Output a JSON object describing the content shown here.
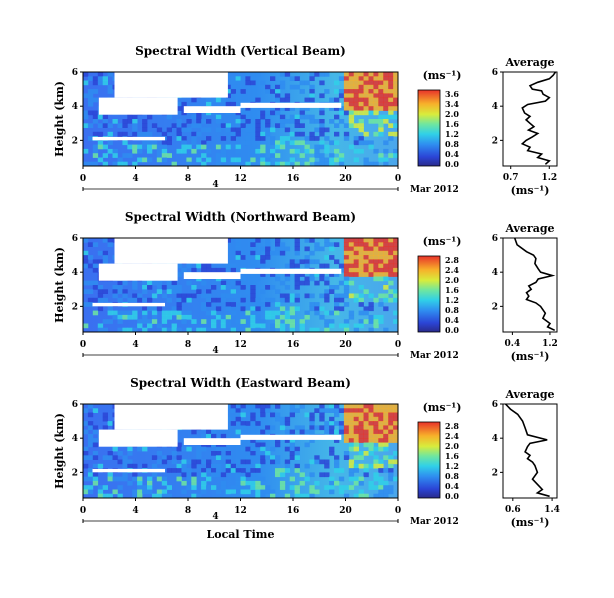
{
  "figure": {
    "date_label": "Mar 2012",
    "time_axis_label": "Local Time",
    "day_label": "4",
    "height_label": "Height (km)",
    "units_label": "(ms⁻¹)",
    "average_title": "Average",
    "average_units": "(ms⁻¹)"
  },
  "chart_data": [
    {
      "type": "heatmap",
      "title": "Spectral Width (Vertical Beam)",
      "xlabel": "",
      "ylabel": "Height (km)",
      "x_ticks": [
        "0",
        "4",
        "8",
        "12",
        "16",
        "20",
        "0"
      ],
      "y_ticks": [
        "6",
        "4",
        "2"
      ],
      "xlim": [
        0,
        24
      ],
      "ylim": [
        0.5,
        6
      ],
      "colorbar": {
        "label": "(ms⁻¹)",
        "ticks": [
          "3.6",
          "3.4",
          "2.0",
          "1.6",
          "1.2",
          "0.8",
          "0.4",
          "0.0"
        ],
        "range": [
          0,
          3.6
        ]
      },
      "description_values": {
        "high_width_region_time": [
          20,
          24
        ],
        "high_width_region_height": [
          4,
          6
        ]
      },
      "average_profile": {
        "title": "Average",
        "xlabel": "(ms⁻¹)",
        "x_ticks": [
          "0.7",
          "1.2"
        ],
        "xlim": [
          0.6,
          1.3
        ],
        "y_ticks": [
          "6",
          "4",
          "2"
        ],
        "ylim": [
          0.5,
          6
        ],
        "x": [
          1.28,
          1.25,
          1.2,
          1.05,
          0.95,
          0.98,
          1.1,
          1.12,
          1.2,
          1.15,
          0.92,
          0.85,
          0.88,
          0.95,
          0.9,
          0.95,
          1.0,
          0.93,
          1.05,
          0.98,
          0.9,
          0.85,
          0.95,
          0.92,
          1.1,
          1.05,
          1.2,
          1.15
        ],
        "y": [
          6.0,
          5.8,
          5.6,
          5.4,
          5.2,
          5.0,
          4.9,
          4.7,
          4.5,
          4.3,
          4.1,
          3.9,
          3.6,
          3.4,
          3.2,
          3.0,
          2.8,
          2.6,
          2.4,
          2.2,
          2.0,
          1.8,
          1.6,
          1.4,
          1.2,
          1.0,
          0.8,
          0.6
        ]
      }
    },
    {
      "type": "heatmap",
      "title": "Spectral Width (Northward Beam)",
      "xlabel": "",
      "ylabel": "Height (km)",
      "x_ticks": [
        "0",
        "4",
        "8",
        "12",
        "16",
        "20",
        "0"
      ],
      "y_ticks": [
        "6",
        "4",
        "2"
      ],
      "xlim": [
        0,
        24
      ],
      "ylim": [
        0.5,
        6
      ],
      "colorbar": {
        "label": "(ms⁻¹)",
        "ticks": [
          "2.8",
          "2.4",
          "2.0",
          "1.6",
          "1.2",
          "0.8",
          "0.4",
          "0.0"
        ],
        "range": [
          0,
          2.8
        ]
      },
      "average_profile": {
        "title": "Average",
        "xlabel": "(ms⁻¹)",
        "x_ticks": [
          "0.4",
          "1.2"
        ],
        "xlim": [
          0.2,
          1.35
        ],
        "y_ticks": [
          "6",
          "4",
          "2"
        ],
        "ylim": [
          0.5,
          6
        ],
        "x": [
          0.45,
          0.5,
          0.7,
          0.85,
          0.9,
          0.88,
          0.95,
          1.0,
          1.25,
          0.95,
          0.9,
          0.75,
          0.8,
          0.7,
          0.75,
          0.7,
          0.9,
          1.0,
          1.1,
          1.05,
          1.2,
          1.15,
          1.3
        ],
        "y": [
          6.0,
          5.6,
          5.2,
          5.0,
          4.8,
          4.5,
          4.2,
          4.0,
          3.8,
          3.6,
          3.4,
          3.2,
          3.0,
          2.8,
          2.6,
          2.4,
          2.2,
          2.0,
          1.6,
          1.3,
          1.0,
          0.8,
          0.6
        ]
      }
    },
    {
      "type": "heatmap",
      "title": "Spectral Width (Eastward Beam)",
      "xlabel": "Local Time",
      "ylabel": "Height (km)",
      "x_ticks": [
        "0",
        "4",
        "8",
        "12",
        "16",
        "20",
        "0"
      ],
      "y_ticks": [
        "6",
        "4",
        "2"
      ],
      "xlim": [
        0,
        24
      ],
      "ylim": [
        0.5,
        6
      ],
      "colorbar": {
        "label": "(ms⁻¹)",
        "ticks": [
          "2.8",
          "2.4",
          "2.0",
          "1.6",
          "1.2",
          "0.8",
          "0.4",
          "0.0"
        ],
        "range": [
          0,
          2.8
        ]
      },
      "average_profile": {
        "title": "Average",
        "xlabel": "(ms⁻¹)",
        "x_ticks": [
          "0.6",
          "1.4"
        ],
        "xlim": [
          0.4,
          1.5
        ],
        "y_ticks": [
          "6",
          "4",
          "2"
        ],
        "ylim": [
          0.5,
          6
        ],
        "x": [
          0.45,
          0.55,
          0.7,
          0.8,
          0.85,
          0.9,
          1.3,
          0.95,
          0.9,
          0.85,
          0.95,
          0.9,
          1.0,
          1.05,
          1.1,
          1.0,
          1.1,
          1.2,
          1.1,
          1.35
        ],
        "y": [
          6.0,
          5.7,
          5.4,
          5.0,
          4.6,
          4.2,
          3.9,
          3.7,
          3.5,
          3.2,
          3.0,
          2.8,
          2.6,
          2.4,
          2.0,
          1.6,
          1.3,
          1.0,
          0.8,
          0.6
        ]
      }
    }
  ]
}
